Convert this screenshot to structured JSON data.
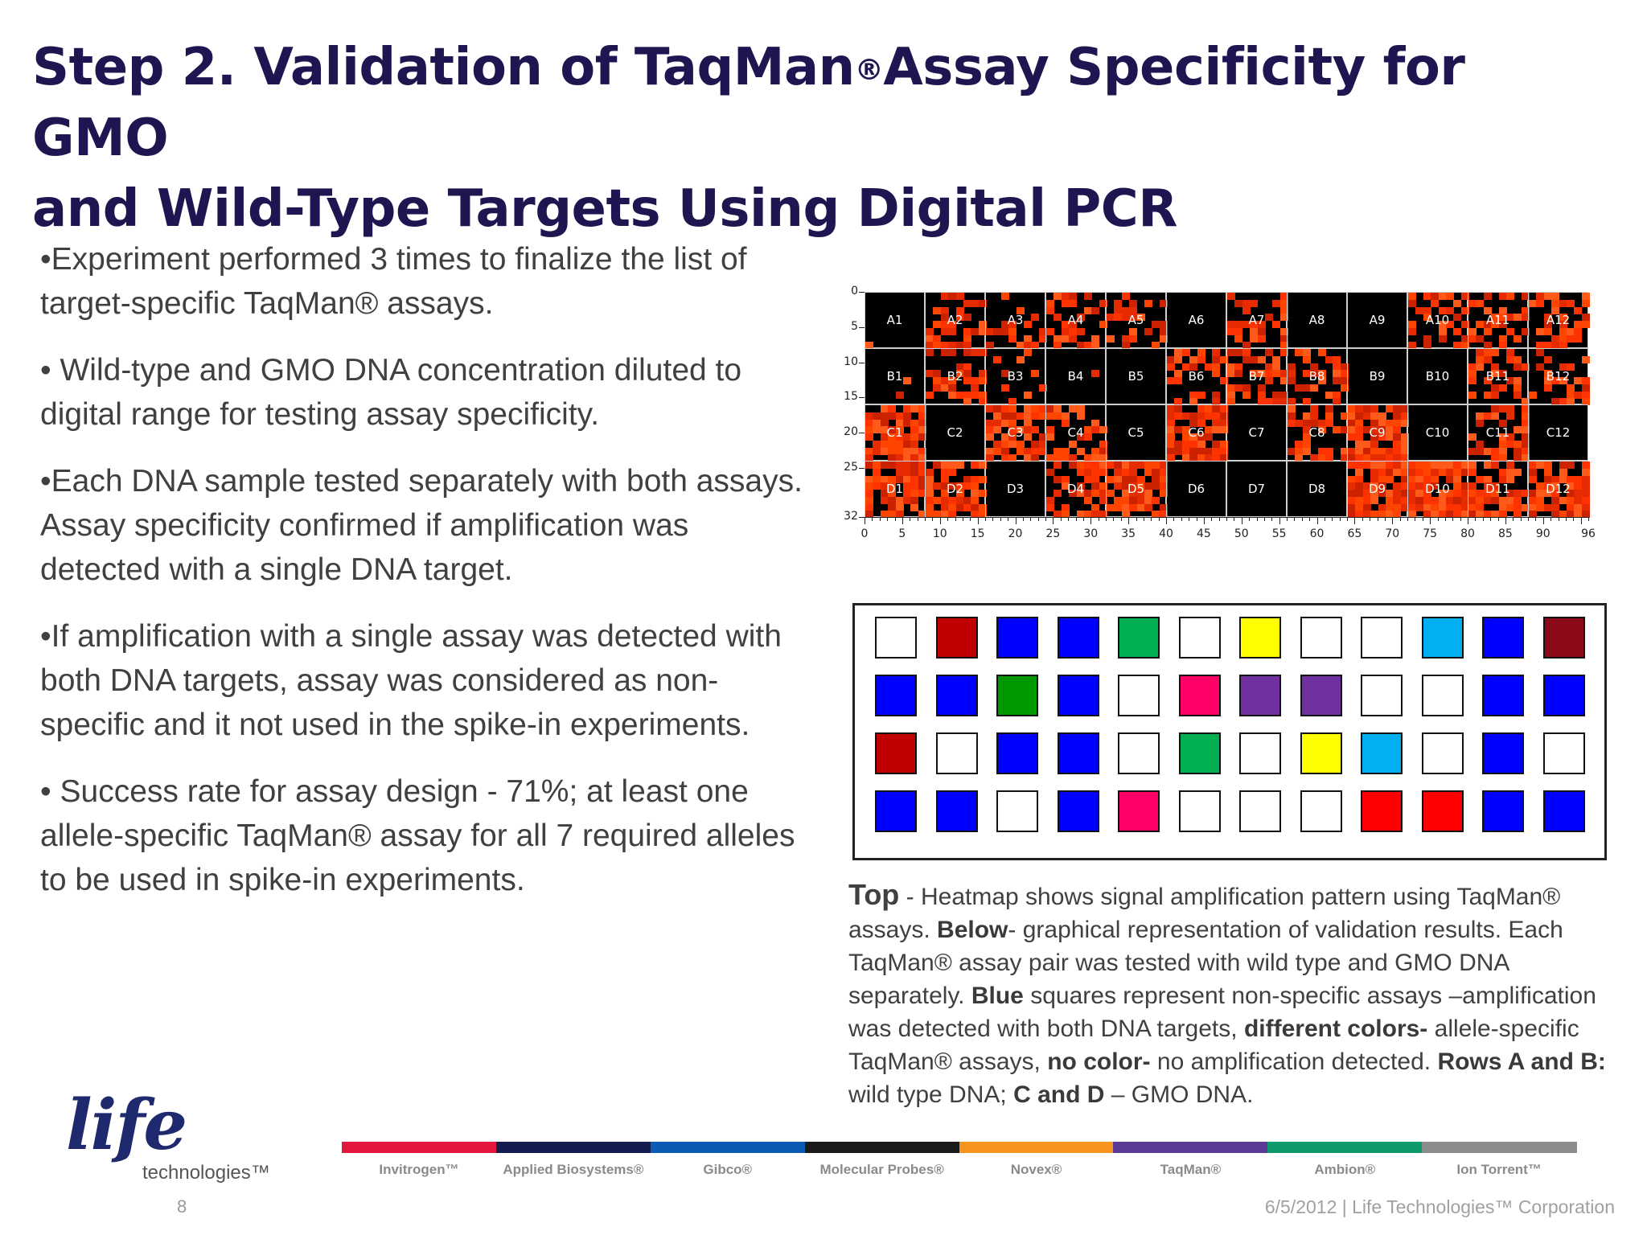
{
  "title": {
    "line1_pre": "Step 2. Validation of TaqMan",
    "line1_reg": "®",
    "line1_post": "Assay Specificity for GMO",
    "line2": "and Wild-Type Targets Using Digital PCR"
  },
  "bullets": [
    "•Experiment performed 3 times to finalize the list of  target-specific TaqMan® assays.",
    "• Wild-type and GMO DNA concentration diluted to digital range for testing assay specificity.",
    "•Each DNA sample tested separately with both assays.  Assay specificity confirmed if amplification was detected with a single DNA target.",
    "•If amplification with a single assay was detected with both DNA targets, assay was considered as non-specific and it not used in the spike-in experiments.",
    "• Success rate for assay design - 71%; at least one allele-specific TaqMan® assay for all 7 required alleles to be used in spike-in experiments."
  ],
  "heatmap": {
    "y_ticks": [
      "0",
      "5",
      "10",
      "15",
      "20",
      "25",
      "32"
    ],
    "x_ticks": [
      "0",
      "5",
      "10",
      "15",
      "20",
      "25",
      "30",
      "35",
      "40",
      "45",
      "50",
      "55",
      "60",
      "65",
      "70",
      "75",
      "80",
      "85",
      "90",
      "96"
    ],
    "rows": [
      "A",
      "B",
      "C",
      "D"
    ],
    "wells": [
      [
        "A1",
        "A2",
        "A3",
        "A4",
        "A5",
        "A6",
        "A7",
        "A8",
        "A9",
        "A10",
        "A11",
        "A12"
      ],
      [
        "B1",
        "B2",
        "B3",
        "B4",
        "B5",
        "B6",
        "B7",
        "B8",
        "B9",
        "B10",
        "B11",
        "B12"
      ],
      [
        "C1",
        "C2",
        "C3",
        "C4",
        "C5",
        "C6",
        "C7",
        "C8",
        "C9",
        "C10",
        "C11",
        "C12"
      ],
      [
        "D1",
        "D2",
        "D3",
        "D4",
        "D5",
        "D6",
        "D7",
        "D8",
        "D9",
        "D10",
        "D11",
        "D12"
      ]
    ],
    "signal": [
      [
        0.05,
        0.45,
        0.35,
        0.45,
        0.3,
        0.0,
        0.45,
        0.0,
        0.0,
        0.45,
        0.45,
        0.5
      ],
      [
        0.05,
        0.4,
        0.1,
        0.1,
        0.0,
        0.45,
        0.5,
        0.45,
        0.0,
        0.0,
        0.4,
        0.35
      ],
      [
        0.8,
        0.0,
        0.75,
        0.5,
        0.0,
        0.85,
        0.0,
        0.6,
        0.8,
        0.0,
        0.6,
        0.0
      ],
      [
        0.75,
        0.75,
        0.0,
        0.7,
        0.7,
        0.0,
        0.0,
        0.0,
        0.85,
        0.8,
        0.7,
        0.75
      ]
    ]
  },
  "grid_colors": [
    [
      "#ffffff",
      "#c00000",
      "#0000ff",
      "#0000ff",
      "#00b050",
      "#ffffff",
      "#ffff00",
      "#ffffff",
      "#ffffff",
      "#00b0f0",
      "#0000ff",
      "#8b0a1a"
    ],
    [
      "#0000ff",
      "#0000ff",
      "#009900",
      "#0000ff",
      "#ffffff",
      "#ff0066",
      "#7030a0",
      "#7030a0",
      "#ffffff",
      "#ffffff",
      "#0000ff",
      "#0000ff"
    ],
    [
      "#c00000",
      "#ffffff",
      "#0000ff",
      "#0000ff",
      "#ffffff",
      "#00b050",
      "#ffffff",
      "#ffff00",
      "#00b0f0",
      "#ffffff",
      "#0000ff",
      "#ffffff"
    ],
    [
      "#0000ff",
      "#0000ff",
      "#ffffff",
      "#0000ff",
      "#ff0066",
      "#ffffff",
      "#ffffff",
      "#ffffff",
      "#ff0000",
      "#ff0000",
      "#0000ff",
      "#0000ff"
    ]
  ],
  "caption": {
    "lead": "Top",
    "t1": " - Heatmap  shows  signal amplification pattern using TaqMan® assays. ",
    "b1": "Below",
    "t2": "- graphical representation of validation results. Each TaqMan® assay pair was tested with wild  type and GMO DNA separately. ",
    "b2": "Blue",
    "t3": " squares represent non-specific  assays –amplification  was detected  with both DNA  targets, ",
    "b3": "different colors-",
    "t4": " allele-specific  TaqMan® assays, ",
    "b4": "no color-",
    "t5": " no amplification detected. ",
    "b5": "Rows A and B:",
    "t6": " wild type DNA;  ",
    "b6": "C and D",
    "t7": " – GMO DNA."
  },
  "logo": {
    "word": "life",
    "sub": "technologies™"
  },
  "brands": [
    {
      "name": "Invitrogen™",
      "color": "#e3173e"
    },
    {
      "name": "Applied Biosystems®",
      "color": "#131c4f"
    },
    {
      "name": "Gibco®",
      "color": "#0b5bb5"
    },
    {
      "name": "Molecular Probes®",
      "color": "#1a1a1a"
    },
    {
      "name": "Novex®",
      "color": "#f7941d"
    },
    {
      "name": "TaqMan®",
      "color": "#5b3a96"
    },
    {
      "name": "Ambion®",
      "color": "#0f9a6e"
    },
    {
      "name": "Ion Torrent™",
      "color": "#8c8c8c"
    }
  ],
  "page_number": "8",
  "footer": "6/5/2012  |  Life Technologies™ Corporation"
}
